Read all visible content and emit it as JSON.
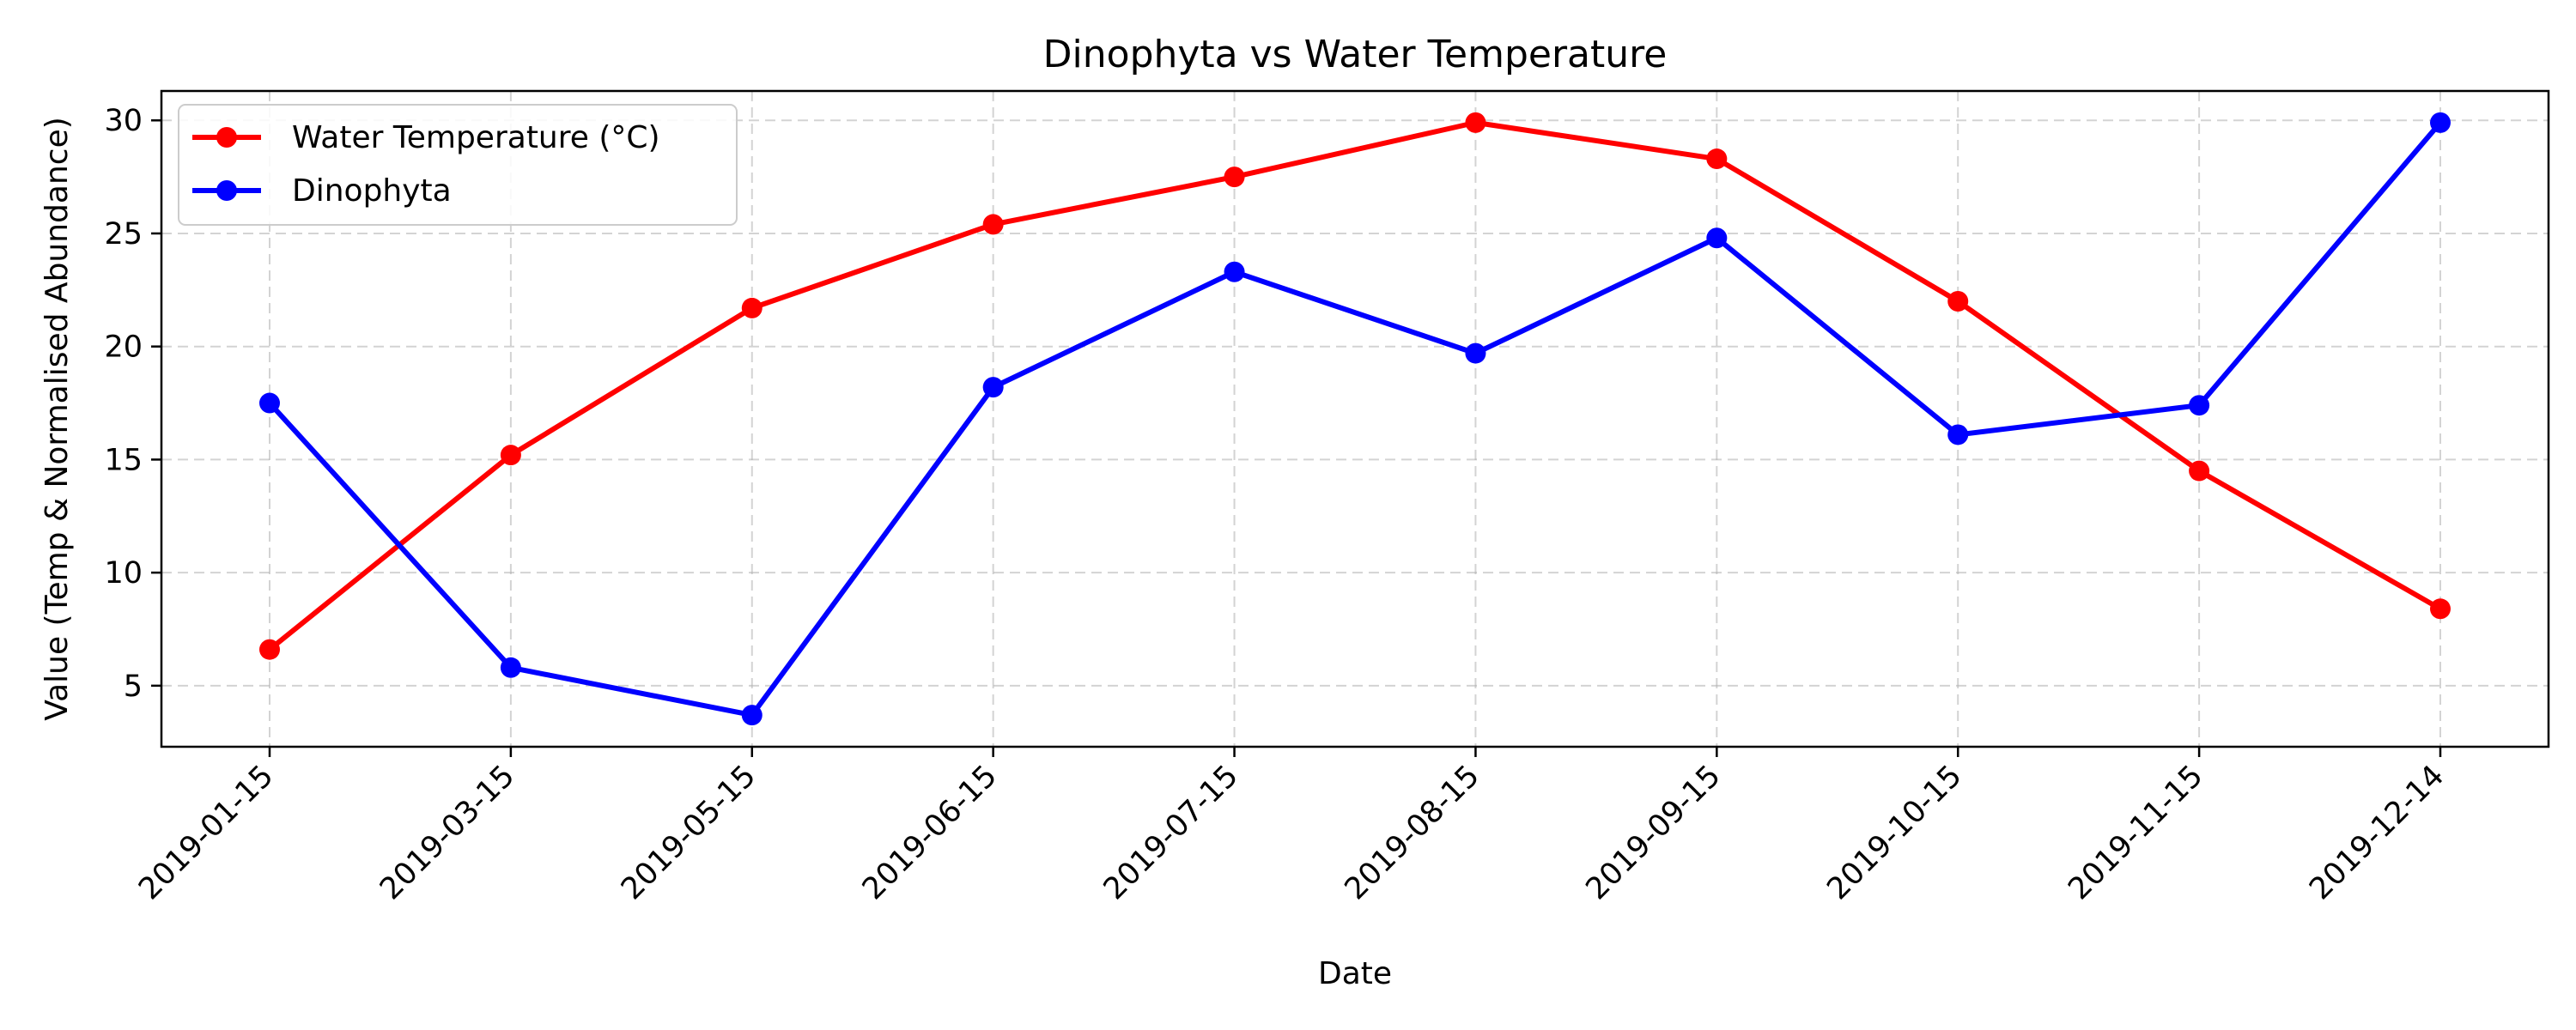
{
  "chart_data": {
    "type": "line",
    "title": "Dinophyta vs Water Temperature",
    "xlabel": "Date",
    "ylabel": "Value (Temp & Normalised Abundance)",
    "categories": [
      "2019-01-15",
      "2019-03-15",
      "2019-05-15",
      "2019-06-15",
      "2019-07-15",
      "2019-08-15",
      "2019-09-15",
      "2019-10-15",
      "2019-11-15",
      "2019-12-14"
    ],
    "yticks": [
      5,
      10,
      15,
      20,
      25,
      30
    ],
    "ylim": [
      2.3,
      31.3
    ],
    "grid": true,
    "legend": "top-left",
    "series": [
      {
        "name": "Water Temperature (°C)",
        "color": "#ff0000",
        "values": [
          6.6,
          15.2,
          21.7,
          25.4,
          27.5,
          29.9,
          28.3,
          22.0,
          14.5,
          8.4
        ]
      },
      {
        "name": "Dinophyta",
        "color": "#0000ff",
        "values": [
          17.5,
          5.8,
          3.7,
          18.2,
          23.3,
          19.7,
          24.8,
          16.1,
          17.4,
          29.9
        ]
      }
    ]
  }
}
